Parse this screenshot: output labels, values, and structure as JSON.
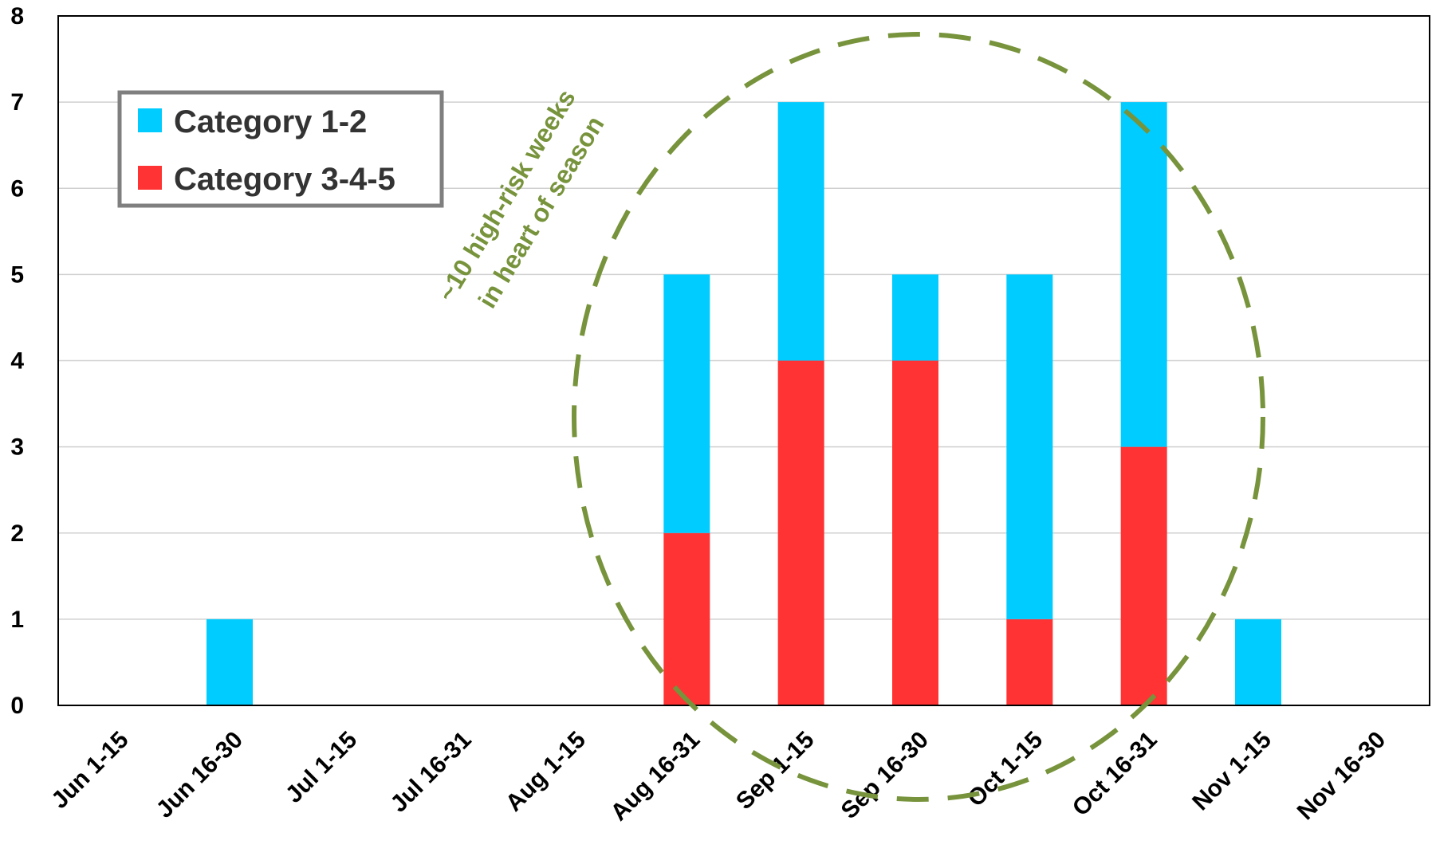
{
  "chart_data": {
    "type": "bar",
    "stacked": true,
    "categories": [
      "Jun 1-15",
      "Jun 16-30",
      "Jul 1-15",
      "Jul 16-31",
      "Aug 1-15",
      "Aug 16-31",
      "Sep 1-15",
      "Sep 16-30",
      "Oct 1-15",
      "Oct 16-31",
      "Nov 1-15",
      "Nov 16-30"
    ],
    "series": [
      {
        "name": "Category 3-4-5",
        "color": "#ff3333",
        "values": [
          0,
          0,
          0,
          0,
          0,
          2,
          4,
          4,
          1,
          3,
          0,
          0
        ]
      },
      {
        "name": "Category 1-2",
        "color": "#00ccff",
        "values": [
          0,
          1,
          0,
          0,
          0,
          3,
          3,
          1,
          4,
          4,
          1,
          0
        ]
      }
    ],
    "ylim": [
      0,
      8
    ],
    "yticks": [
      0,
      1,
      2,
      3,
      4,
      5,
      6,
      7,
      8
    ],
    "grid": true,
    "legend_position": "top-left",
    "legend_order": [
      "Category 1-2",
      "Category 3-4-5"
    ],
    "annotation": {
      "lines": [
        "~10 high-risk weeks",
        "in heart of season"
      ],
      "color": "#77933c",
      "shape": "dashed-ellipse"
    }
  }
}
